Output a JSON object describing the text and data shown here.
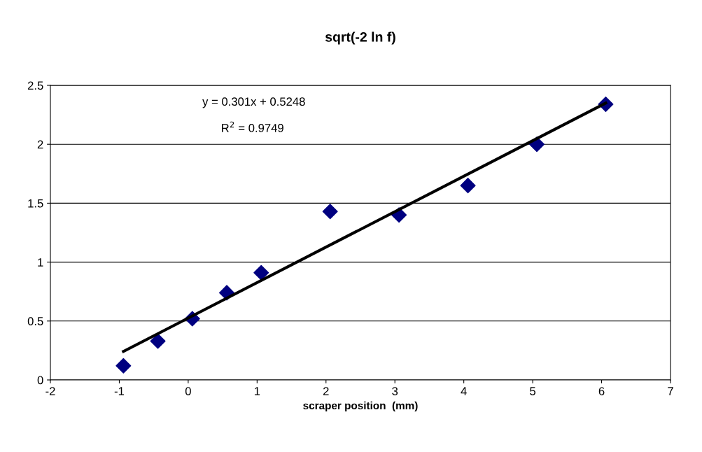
{
  "chart_data": {
    "type": "scatter",
    "title": "sqrt(-2 ln f)",
    "xlabel": "scraper position  (mm)",
    "x": [
      -0.94,
      -0.44,
      0.06,
      0.56,
      1.06,
      2.06,
      3.06,
      4.06,
      5.06,
      6.06
    ],
    "series": [
      {
        "color": "#000080",
        "marker": "diamond",
        "values": [
          0.12,
          0.33,
          0.52,
          0.74,
          0.91,
          1.43,
          1.4,
          1.65,
          2.0,
          2.34
        ]
      },
      {
        "type": "line",
        "color": "#000000",
        "marker": "none",
        "x": [
          -0.94,
          6.06
        ],
        "values": [
          0.242,
          2.349
        ]
      }
    ],
    "annotations": [
      "y = 0.301x + 0.5248",
      "R$^{2}$ = 0.9749"
    ],
    "xlim": [
      -2,
      7
    ],
    "xticks": [
      -2,
      -1,
      0,
      1,
      2,
      3,
      4,
      5,
      6,
      7
    ],
    "ylim": [
      0,
      2.5
    ],
    "yticks": [
      0,
      0.5,
      1,
      1.5,
      2,
      2.5
    ],
    "grid": "y",
    "legend": false
  }
}
